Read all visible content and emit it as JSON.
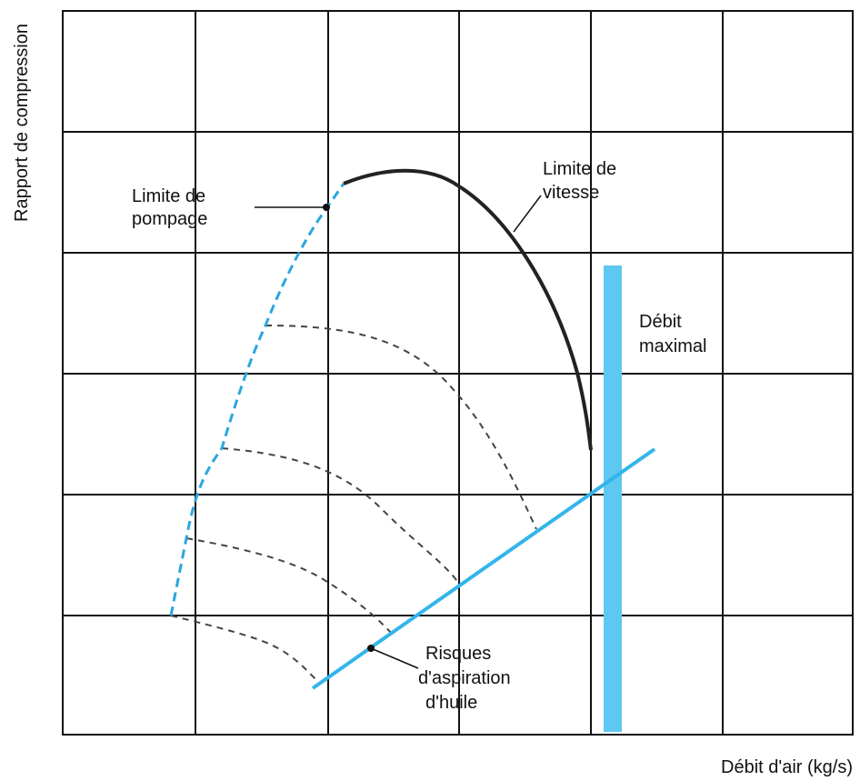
{
  "chart_data": {
    "type": "line",
    "title": "",
    "xlabel": "Débit d'air (kg/s)",
    "ylabel": "Rapport de compression",
    "grid": true,
    "annotations": {
      "surge_limit": [
        "Limite de",
        "pompage"
      ],
      "speed_limit": [
        "Limite de",
        "vitesse"
      ],
      "max_flow": [
        "Débit",
        "maximal"
      ],
      "oil_risk": [
        "Risques",
        "d'aspiration",
        "d'huile"
      ]
    },
    "colors": {
      "grid": "#111111",
      "surge": "#2aa6e0",
      "speed": "#222222",
      "speed_lines": "#444444",
      "oil_line": "#33b5ea",
      "max_flow_bar": "#5ec8f0"
    }
  }
}
